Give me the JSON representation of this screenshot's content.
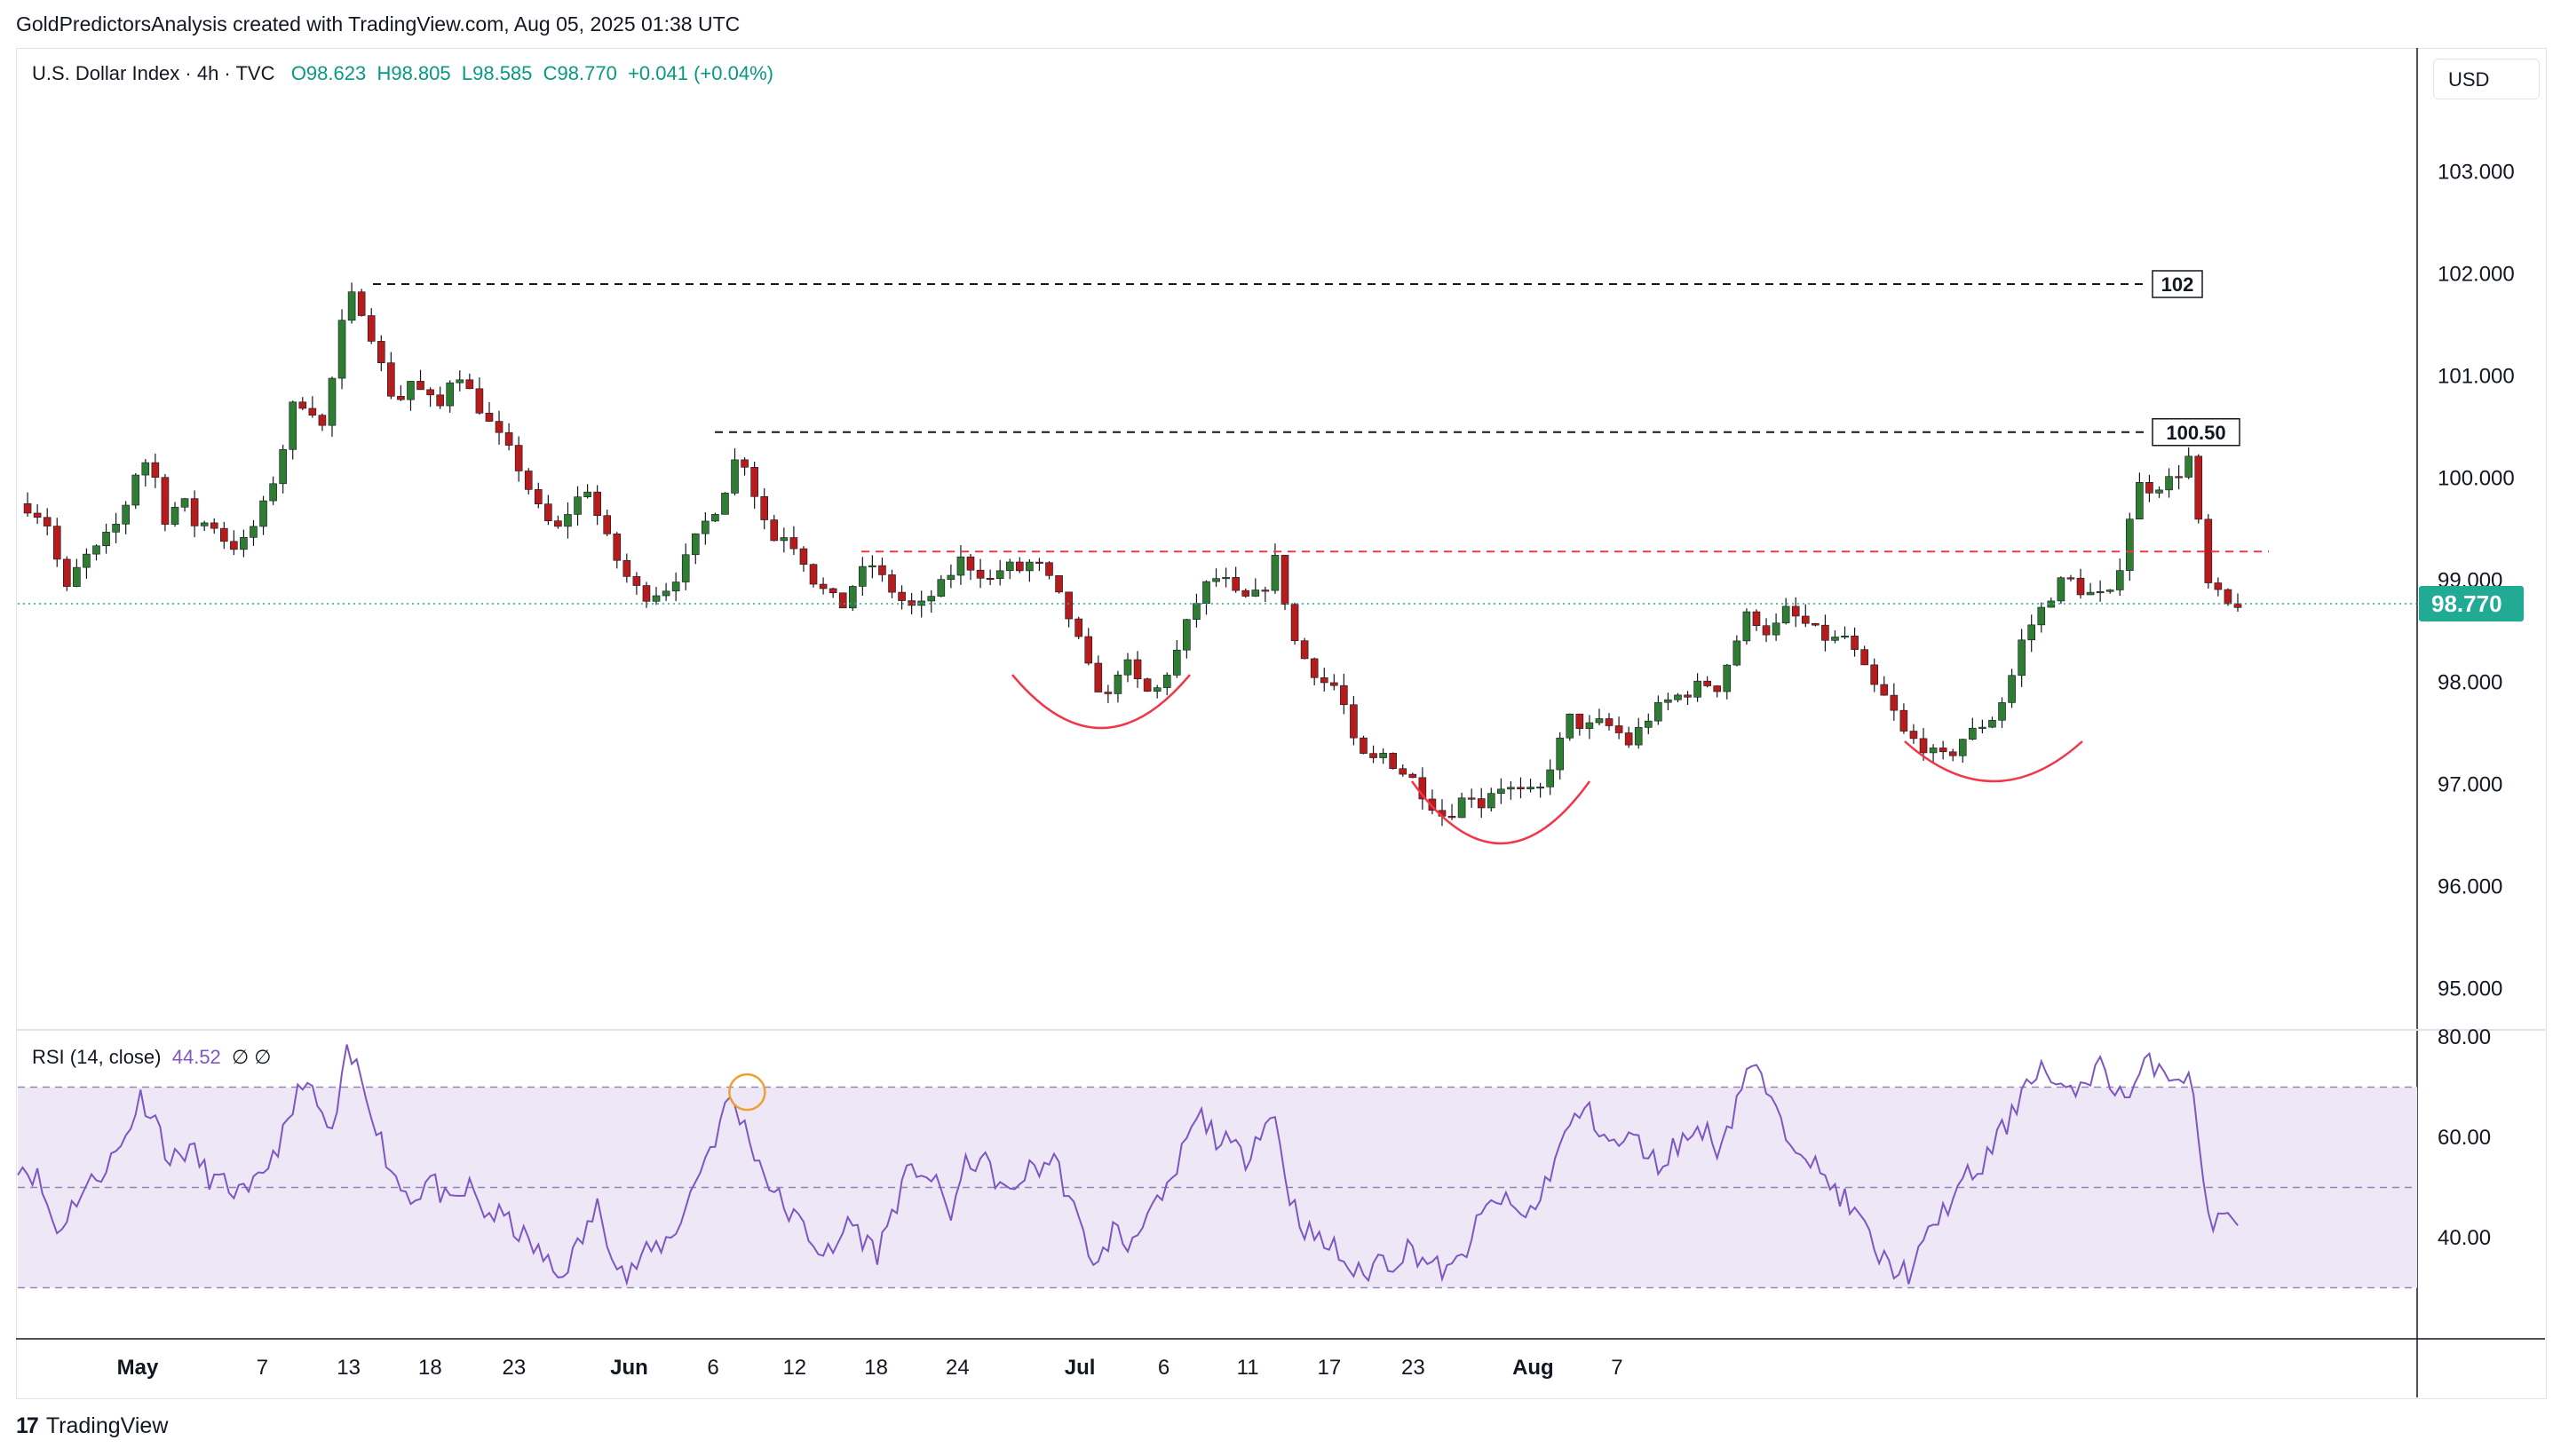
{
  "header": {
    "attribution": "GoldPredictorsAnalysis created with TradingView.com, Aug 05, 2025 01:38 UTC"
  },
  "legend": {
    "symbol": "U.S. Dollar Index · 4h · TVC",
    "open": "O98.623",
    "high": "H98.805",
    "low": "L98.585",
    "close": "C98.770",
    "change": "+0.041 (+0.04%)"
  },
  "currency_button": "USD",
  "footer": {
    "brand": "TradingView"
  },
  "colors": {
    "up": "#26a69a",
    "down": "#ef5350",
    "body_up": "#2e7d32",
    "body_down": "#b71c1c",
    "rsi": "#7e57c2",
    "rsi_band": "#ede7f6",
    "price_label": "#22ab94",
    "red_line": "#f23645"
  },
  "chart_data": [
    {
      "type": "candlestick",
      "title": "U.S. Dollar Index · 4h · TVC",
      "ylim": [
        94.7,
        104.5
      ],
      "y_ticks": [
        "103.000",
        "102.000",
        "101.000",
        "100.000",
        "99.000",
        "98.000",
        "97.000",
        "96.000",
        "95.000"
      ],
      "x_ticks": [
        "May",
        "7",
        "13",
        "18",
        "23",
        "Jun",
        "6",
        "12",
        "18",
        "24",
        "Jul",
        "6",
        "11",
        "17",
        "23",
        "Aug",
        "7"
      ],
      "last_price": "98.770",
      "close_path": [
        [
          0,
          99.75
        ],
        [
          6,
          99.7
        ],
        [
          12,
          99.55
        ],
        [
          16,
          99.2
        ],
        [
          20,
          98.9
        ],
        [
          26,
          99.2
        ],
        [
          32,
          99.3
        ],
        [
          42,
          99.6
        ],
        [
          50,
          100.2
        ],
        [
          55,
          100.1
        ],
        [
          60,
          99.6
        ],
        [
          67,
          99.8
        ],
        [
          73,
          99.5
        ],
        [
          78,
          99.6
        ],
        [
          84,
          99.4
        ],
        [
          90,
          99.3
        ],
        [
          98,
          99.6
        ],
        [
          106,
          100.1
        ],
        [
          112,
          100.7
        ],
        [
          118,
          100.75
        ],
        [
          124,
          100.5
        ],
        [
          130,
          101.2
        ],
        [
          134,
          101.8
        ],
        [
          138,
          101.75
        ],
        [
          142,
          101.55
        ],
        [
          148,
          101.1
        ],
        [
          154,
          100.7
        ],
        [
          160,
          100.95
        ],
        [
          166,
          100.8
        ],
        [
          172,
          100.7
        ],
        [
          178,
          101.1
        ],
        [
          184,
          100.85
        ],
        [
          190,
          100.6
        ],
        [
          196,
          100.4
        ],
        [
          202,
          100.2
        ],
        [
          208,
          99.9
        ],
        [
          214,
          99.6
        ],
        [
          220,
          99.5
        ],
        [
          226,
          99.75
        ],
        [
          232,
          99.9
        ],
        [
          238,
          99.5
        ],
        [
          244,
          99.2
        ],
        [
          250,
          98.95
        ],
        [
          256,
          98.85
        ],
        [
          262,
          98.9
        ],
        [
          266,
          98.95
        ],
        [
          272,
          99.2
        ],
        [
          278,
          99.5
        ],
        [
          284,
          99.7
        ],
        [
          288,
          99.9
        ],
        [
          294,
          100.3
        ],
        [
          298,
          100.0
        ],
        [
          302,
          99.7
        ],
        [
          308,
          99.4
        ],
        [
          312,
          99.45
        ],
        [
          318,
          99.3
        ],
        [
          324,
          99.0
        ],
        [
          330,
          98.85
        ],
        [
          336,
          98.75
        ],
        [
          342,
          99.05
        ],
        [
          348,
          99.15
        ],
        [
          354,
          98.95
        ],
        [
          360,
          98.8
        ],
        [
          366,
          98.7
        ],
        [
          372,
          98.85
        ],
        [
          378,
          99.0
        ],
        [
          384,
          99.2
        ],
        [
          390,
          99.1
        ],
        [
          396,
          99.0
        ],
        [
          402,
          99.15
        ],
        [
          408,
          99.1
        ],
        [
          414,
          99.2
        ],
        [
          420,
          99.0
        ],
        [
          426,
          98.75
        ],
        [
          432,
          98.4
        ],
        [
          438,
          98.0
        ],
        [
          444,
          97.85
        ],
        [
          450,
          98.25
        ],
        [
          456,
          98.0
        ],
        [
          462,
          97.85
        ],
        [
          468,
          98.1
        ],
        [
          472,
          98.3
        ],
        [
          478,
          98.7
        ],
        [
          484,
          98.95
        ],
        [
          490,
          99.05
        ],
        [
          496,
          98.85
        ],
        [
          502,
          98.8
        ],
        [
          508,
          98.95
        ],
        [
          512,
          99.2
        ],
        [
          516,
          98.8
        ],
        [
          520,
          98.4
        ],
        [
          526,
          98.15
        ],
        [
          532,
          98.0
        ],
        [
          538,
          97.95
        ],
        [
          544,
          97.4
        ],
        [
          550,
          97.2
        ],
        [
          556,
          97.3
        ],
        [
          562,
          97.15
        ],
        [
          568,
          97.05
        ],
        [
          574,
          96.85
        ],
        [
          580,
          96.7
        ],
        [
          586,
          96.75
        ],
        [
          590,
          96.95
        ],
        [
          596,
          96.8
        ],
        [
          602,
          97.0
        ],
        [
          608,
          96.95
        ],
        [
          614,
          96.9
        ],
        [
          620,
          96.95
        ],
        [
          626,
          97.3
        ],
        [
          632,
          97.65
        ],
        [
          638,
          97.55
        ],
        [
          644,
          97.6
        ],
        [
          650,
          97.55
        ],
        [
          656,
          97.4
        ],
        [
          662,
          97.6
        ],
        [
          668,
          97.75
        ],
        [
          674,
          97.85
        ],
        [
          680,
          97.9
        ],
        [
          686,
          98.0
        ],
        [
          692,
          97.95
        ],
        [
          698,
          98.3
        ],
        [
          704,
          98.65
        ],
        [
          708,
          98.6
        ],
        [
          712,
          98.5
        ],
        [
          716,
          98.55
        ],
        [
          720,
          98.7
        ],
        [
          726,
          98.6
        ],
        [
          732,
          98.5
        ],
        [
          738,
          98.4
        ],
        [
          744,
          98.45
        ],
        [
          750,
          98.2
        ],
        [
          756,
          97.95
        ],
        [
          762,
          97.8
        ],
        [
          768,
          97.5
        ],
        [
          774,
          97.4
        ],
        [
          780,
          97.3
        ],
        [
          786,
          97.25
        ],
        [
          792,
          97.45
        ],
        [
          798,
          97.55
        ],
        [
          804,
          97.65
        ],
        [
          810,
          97.9
        ],
        [
          816,
          98.4
        ],
        [
          822,
          98.65
        ],
        [
          828,
          98.85
        ],
        [
          834,
          99.05
        ],
        [
          840,
          98.9
        ],
        [
          846,
          98.85
        ],
        [
          852,
          98.85
        ],
        [
          858,
          99.3
        ],
        [
          862,
          99.95
        ],
        [
          868,
          99.9
        ],
        [
          874,
          99.95
        ],
        [
          880,
          100.05
        ],
        [
          884,
          100.2
        ],
        [
          888,
          99.55
        ],
        [
          892,
          98.95
        ],
        [
          896,
          98.85
        ],
        [
          900,
          98.75
        ],
        [
          904,
          98.77
        ]
      ],
      "annotations": [
        {
          "label": "102",
          "value": 101.9
        },
        {
          "label": "100.50",
          "value": 100.45
        },
        {
          "label": "",
          "value": 99.28,
          "style": "red-dashed"
        },
        {
          "label": "",
          "value": 98.77,
          "style": "green-dotted"
        }
      ]
    },
    {
      "type": "line",
      "title": "RSI (14, close)",
      "value_label": "44.52",
      "extra_label": "∅ ∅",
      "ylim": [
        20,
        82
      ],
      "y_ticks": [
        "80.00",
        "60.00",
        "40.00"
      ],
      "bands": {
        "upper": 70,
        "middle": 50,
        "lower": 30
      },
      "values_path": [
        [
          0,
          55
        ],
        [
          8,
          52
        ],
        [
          16,
          41
        ],
        [
          24,
          48
        ],
        [
          32,
          52
        ],
        [
          42,
          58
        ],
        [
          50,
          68
        ],
        [
          56,
          64
        ],
        [
          62,
          55
        ],
        [
          70,
          58
        ],
        [
          78,
          52
        ],
        [
          86,
          50
        ],
        [
          94,
          48
        ],
        [
          102,
          55
        ],
        [
          110,
          62
        ],
        [
          116,
          72
        ],
        [
          122,
          66
        ],
        [
          128,
          60
        ],
        [
          134,
          76
        ],
        [
          138,
          74
        ],
        [
          144,
          66
        ],
        [
          150,
          56
        ],
        [
          156,
          50
        ],
        [
          162,
          48
        ],
        [
          168,
          52
        ],
        [
          176,
          46
        ],
        [
          184,
          50
        ],
        [
          190,
          45
        ],
        [
          198,
          44
        ],
        [
          206,
          40
        ],
        [
          214,
          36
        ],
        [
          220,
          32
        ],
        [
          228,
          38
        ],
        [
          236,
          46
        ],
        [
          242,
          38
        ],
        [
          248,
          32
        ],
        [
          254,
          36
        ],
        [
          260,
          38
        ],
        [
          266,
          40
        ],
        [
          272,
          46
        ],
        [
          278,
          54
        ],
        [
          284,
          60
        ],
        [
          290,
          68
        ],
        [
          296,
          62
        ],
        [
          302,
          55
        ],
        [
          308,
          49
        ],
        [
          314,
          45
        ],
        [
          320,
          42
        ],
        [
          326,
          38
        ],
        [
          332,
          36
        ],
        [
          338,
          44
        ],
        [
          344,
          40
        ],
        [
          350,
          37
        ],
        [
          356,
          45
        ],
        [
          362,
          52
        ],
        [
          368,
          54
        ],
        [
          374,
          50
        ],
        [
          380,
          45
        ],
        [
          386,
          54
        ],
        [
          392,
          56
        ],
        [
          398,
          52
        ],
        [
          404,
          48
        ],
        [
          410,
          53
        ],
        [
          416,
          54
        ],
        [
          422,
          56
        ],
        [
          428,
          48
        ],
        [
          434,
          40
        ],
        [
          440,
          34
        ],
        [
          446,
          42
        ],
        [
          452,
          38
        ],
        [
          458,
          44
        ],
        [
          464,
          46
        ],
        [
          470,
          50
        ],
        [
          476,
          60
        ],
        [
          482,
          64
        ],
        [
          488,
          60
        ],
        [
          494,
          58
        ],
        [
          500,
          56
        ],
        [
          506,
          62
        ],
        [
          512,
          64
        ],
        [
          518,
          48
        ],
        [
          524,
          42
        ],
        [
          530,
          39
        ],
        [
          536,
          38
        ],
        [
          542,
          34
        ],
        [
          548,
          32
        ],
        [
          554,
          36
        ],
        [
          560,
          35
        ],
        [
          566,
          38
        ],
        [
          572,
          36
        ],
        [
          578,
          34
        ],
        [
          584,
          33
        ],
        [
          590,
          38
        ],
        [
          596,
          44
        ],
        [
          602,
          48
        ],
        [
          608,
          46
        ],
        [
          614,
          44
        ],
        [
          620,
          48
        ],
        [
          626,
          56
        ],
        [
          632,
          62
        ],
        [
          638,
          66
        ],
        [
          644,
          62
        ],
        [
          650,
          58
        ],
        [
          656,
          60
        ],
        [
          662,
          58
        ],
        [
          668,
          54
        ],
        [
          674,
          58
        ],
        [
          680,
          60
        ],
        [
          686,
          62
        ],
        [
          692,
          58
        ],
        [
          698,
          64
        ],
        [
          704,
          74
        ],
        [
          710,
          72
        ],
        [
          716,
          64
        ],
        [
          722,
          60
        ],
        [
          728,
          58
        ],
        [
          734,
          52
        ],
        [
          740,
          50
        ],
        [
          746,
          46
        ],
        [
          752,
          42
        ],
        [
          758,
          36
        ],
        [
          764,
          34
        ],
        [
          770,
          33
        ],
        [
          776,
          38
        ],
        [
          782,
          44
        ],
        [
          788,
          48
        ],
        [
          794,
          52
        ],
        [
          800,
          54
        ],
        [
          806,
          60
        ],
        [
          812,
          64
        ],
        [
          818,
          72
        ],
        [
          824,
          74
        ],
        [
          830,
          70
        ],
        [
          836,
          68
        ],
        [
          842,
          72
        ],
        [
          848,
          74
        ],
        [
          854,
          70
        ],
        [
          860,
          68
        ],
        [
          866,
          74
        ],
        [
          872,
          75
        ],
        [
          878,
          72
        ],
        [
          884,
          73
        ],
        [
          888,
          60
        ],
        [
          892,
          44
        ],
        [
          896,
          43
        ],
        [
          900,
          44
        ],
        [
          904,
          44.5
        ]
      ]
    }
  ]
}
